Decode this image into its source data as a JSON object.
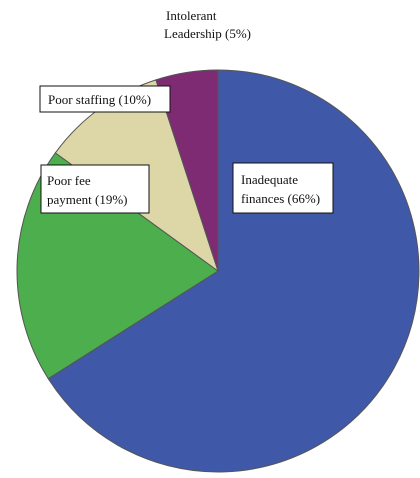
{
  "chart_data": {
    "type": "pie",
    "title": "",
    "slices": [
      {
        "label": "Inadequate finances (66%)",
        "lines": [
          "Inadequate",
          "finances (66%)"
        ],
        "value": 66,
        "color": "#3f58a8"
      },
      {
        "label": "Poor fee payment (19%)",
        "lines": [
          "Poor fee",
          "payment (19%)"
        ],
        "value": 19,
        "color": "#4cae4c"
      },
      {
        "label": "Poor staffing (10%)",
        "lines": [
          "Poor staffing (10%)"
        ],
        "value": 10,
        "color": "#ddd7a8"
      },
      {
        "label": "Intolerant Leadership (5%)",
        "lines": [
          "Intolerant",
          "Leadership (5%)"
        ],
        "value": 5,
        "color": "#7e2b74"
      }
    ]
  }
}
